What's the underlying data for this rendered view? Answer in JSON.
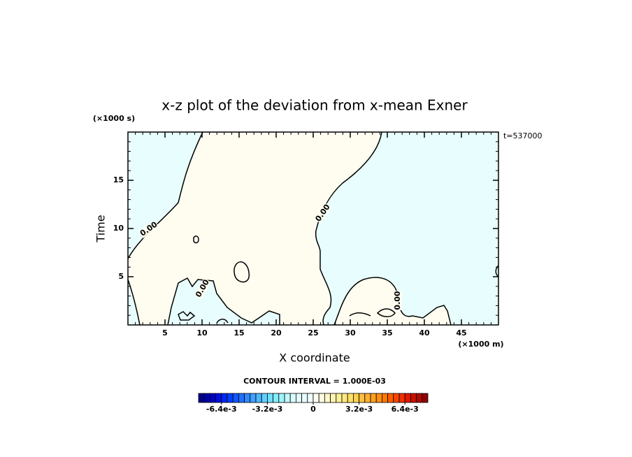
{
  "chart_data": {
    "type": "contour",
    "title": "x-z plot of the deviation from x-mean Exner",
    "xlabel": "X coordinate",
    "ylabel": "Time",
    "x_unit_label": "(×1000 m)",
    "y_unit_label": "(×1000 s)",
    "time_label": "t=537000",
    "xlim": [
      0,
      50
    ],
    "ylim": [
      0,
      20
    ],
    "xticks": [
      5,
      10,
      15,
      20,
      25,
      30,
      35,
      40,
      45
    ],
    "yticks": [
      5,
      10,
      15
    ],
    "contour_level": 0,
    "contour_labels": [
      "0.00",
      "0.00",
      "0.00",
      "0.00"
    ],
    "positive_color": "#fefdf0",
    "negative_color": "#e8fefe",
    "contour_interval_label": "CONTOUR INTERVAL = 1.000E-03",
    "colorbar": {
      "lim": [
        -0.008,
        0.008
      ],
      "ticks": [
        {
          "value": -0.0064,
          "label": "-6.4e-3"
        },
        {
          "value": -0.0032,
          "label": "-3.2e-3"
        },
        0,
        {
          "value": 0.0032,
          "label": "3.2e-3"
        },
        {
          "value": 0.0064,
          "label": "6.4e-3"
        }
      ],
      "colors": [
        "#00008b",
        "#0000a8",
        "#0000c8",
        "#0010e0",
        "#0028f0",
        "#0040ff",
        "#1058ff",
        "#2070ff",
        "#3088ff",
        "#40a0ff",
        "#50b8ff",
        "#60d0ff",
        "#70e0ff",
        "#80eeff",
        "#a0f4ff",
        "#c0f8ff",
        "#d8fbfb",
        "#e0fcfc",
        "#e8fdfd",
        "#f0fefe",
        "#fefef0",
        "#fefce0",
        "#fef8c8",
        "#fef4b0",
        "#fff098",
        "#ffe880",
        "#ffe068",
        "#ffd050",
        "#ffc040",
        "#ffb030",
        "#ffa020",
        "#ff9010",
        "#ff7800",
        "#ff6000",
        "#f84800",
        "#f03000",
        "#e01800",
        "#c81000",
        "#b00800",
        "#900000"
      ]
    }
  }
}
